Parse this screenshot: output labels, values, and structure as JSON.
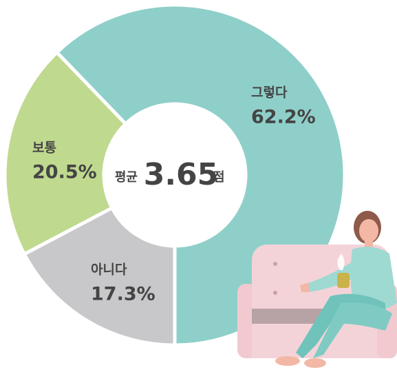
{
  "chart_data": {
    "type": "donut",
    "categories": [
      "그렇다",
      "보통",
      "아니다"
    ],
    "values": [
      62.2,
      20.5,
      17.3
    ],
    "value_labels": [
      "62.2%",
      "20.5%",
      "17.3%"
    ],
    "colors": [
      "#8fcfc9",
      "#bfd98f",
      "#c8c8ca"
    ],
    "center": {
      "label": "평균",
      "value": 3.65,
      "unit": "점"
    }
  }
}
